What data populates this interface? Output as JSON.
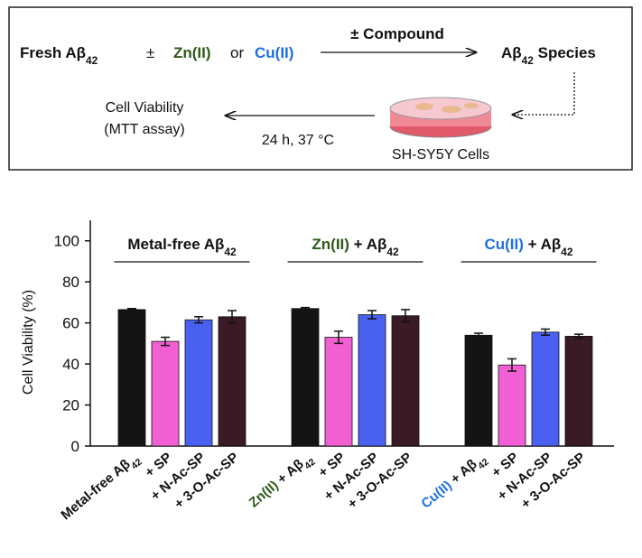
{
  "diagram": {
    "reactant": [
      {
        "t": "Fresh Aβ"
      },
      {
        "t": "42",
        "sub": true
      }
    ],
    "pm": "±",
    "zn": "Zn(II)",
    "or": "or",
    "cu": "Cu(II)",
    "arrow_label": "± Compound",
    "product": [
      {
        "t": "Aβ"
      },
      {
        "t": "42",
        "sub": true
      },
      {
        "t": " Species"
      }
    ],
    "cells": "SH-SY5Y Cells",
    "condition": "24 h, 37 °C",
    "readout": [
      "Cell Viability",
      "(MTT assay)"
    ]
  },
  "chart_data": {
    "type": "bar",
    "y_label": "Cell Viability (%)",
    "ylim": [
      0,
      110
    ],
    "yticks": [
      0,
      20,
      40,
      60,
      80,
      100
    ],
    "groups": [
      {
        "label": [
          {
            "t": "Metal-free Aβ"
          },
          {
            "t": "42",
            "sub": true
          }
        ]
      },
      {
        "label": [
          {
            "t": "Zn(II)",
            "color": "#2d5a16"
          },
          {
            "t": " + Aβ"
          },
          {
            "t": "42",
            "sub": true
          }
        ]
      },
      {
        "label": [
          {
            "t": "Cu(II)",
            "color": "#1e6fe6"
          },
          {
            "t": " + Aβ"
          },
          {
            "t": "42",
            "sub": true
          }
        ]
      }
    ],
    "categories": [
      [
        {
          "t": "Metal-free Aβ"
        },
        {
          "t": "42",
          "sub": true
        }
      ],
      [
        {
          "t": "+ SP"
        }
      ],
      [
        {
          "t": "+ N-Ac-SP"
        }
      ],
      [
        {
          "t": "+ 3-O-Ac-SP"
        }
      ],
      [
        {
          "t": "Zn(II)",
          "color": "#2d5a16"
        },
        {
          "t": " + Aβ"
        },
        {
          "t": "42",
          "sub": true
        }
      ],
      [
        {
          "t": "+ SP"
        }
      ],
      [
        {
          "t": "+ N-Ac-SP"
        }
      ],
      [
        {
          "t": "+ 3-O-Ac-SP"
        }
      ],
      [
        {
          "t": "Cu(II)",
          "color": "#1e6fe6"
        },
        {
          "t": " + Aβ"
        },
        {
          "t": "42",
          "sub": true
        }
      ],
      [
        {
          "t": "+ SP"
        }
      ],
      [
        {
          "t": "+ N-Ac-SP"
        }
      ],
      [
        {
          "t": "+ 3-O-Ac-SP"
        }
      ]
    ],
    "values": [
      66.5,
      51,
      61.5,
      63,
      67,
      53,
      64,
      63.5,
      54,
      39.5,
      55.5,
      53.5
    ],
    "errors": [
      0.5,
      2,
      1.5,
      3,
      0.5,
      3,
      2,
      3,
      1,
      3,
      1.5,
      1
    ],
    "colors": [
      "#141414",
      "#f25fd3",
      "#4a60f0",
      "#3a1a24",
      "#141414",
      "#f25fd3",
      "#4a60f0",
      "#3a1a24",
      "#141414",
      "#f25fd3",
      "#4a60f0",
      "#3a1a24"
    ]
  }
}
